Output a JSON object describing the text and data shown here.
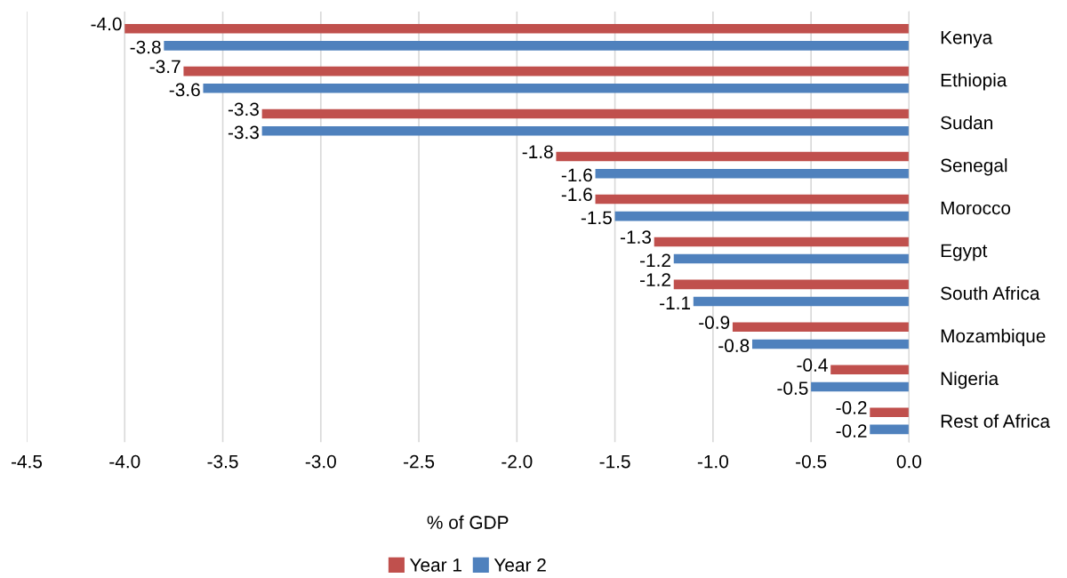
{
  "chart_data": {
    "type": "bar",
    "orientation": "horizontal",
    "xlabel": "% of GDP",
    "categories": [
      "Kenya",
      "Ethiopia",
      "Sudan",
      "Senegal",
      "Morocco",
      "Egypt",
      "South Africa",
      "Mozambique",
      "Nigeria",
      "Rest of Africa"
    ],
    "series": [
      {
        "name": "Year 1",
        "color": "#c0504d",
        "values": [
          -4.0,
          -3.7,
          -3.3,
          -1.8,
          -1.6,
          -1.3,
          -1.2,
          -0.9,
          -0.4,
          -0.2
        ],
        "value_labels": [
          "-4.0",
          "-3.7",
          "-3.3",
          "-1.8",
          "-1.6",
          "-1.3",
          "-1.2",
          "-0.9",
          "-0.4",
          "-0.2"
        ]
      },
      {
        "name": "Year 2",
        "color": "#4f81bd",
        "values": [
          -3.8,
          -3.6,
          -3.3,
          -1.6,
          -1.5,
          -1.2,
          -1.1,
          -0.8,
          -0.5,
          -0.2
        ],
        "value_labels": [
          "-3.8",
          "-3.6",
          "-3.3",
          "-1.6",
          "-1.5",
          "-1.2",
          "-1.1",
          "-0.8",
          "-0.5",
          "-0.2"
        ]
      }
    ],
    "xlim": [
      -4.5,
      0
    ],
    "xticks": [
      {
        "value": -4.5,
        "label": "-4.5"
      },
      {
        "value": -4.0,
        "label": "-4.0"
      },
      {
        "value": -3.5,
        "label": "-3.5"
      },
      {
        "value": -3.0,
        "label": "-3.0"
      },
      {
        "value": -2.5,
        "label": "-2.5"
      },
      {
        "value": -2.0,
        "label": "-2.0"
      },
      {
        "value": -1.5,
        "label": "-1.5"
      },
      {
        "value": -1.0,
        "label": "-1.0"
      },
      {
        "value": -0.5,
        "label": "-0.5"
      },
      {
        "value": 0,
        "label": "0.0"
      }
    ],
    "grid": "x",
    "legend": "bottom"
  }
}
